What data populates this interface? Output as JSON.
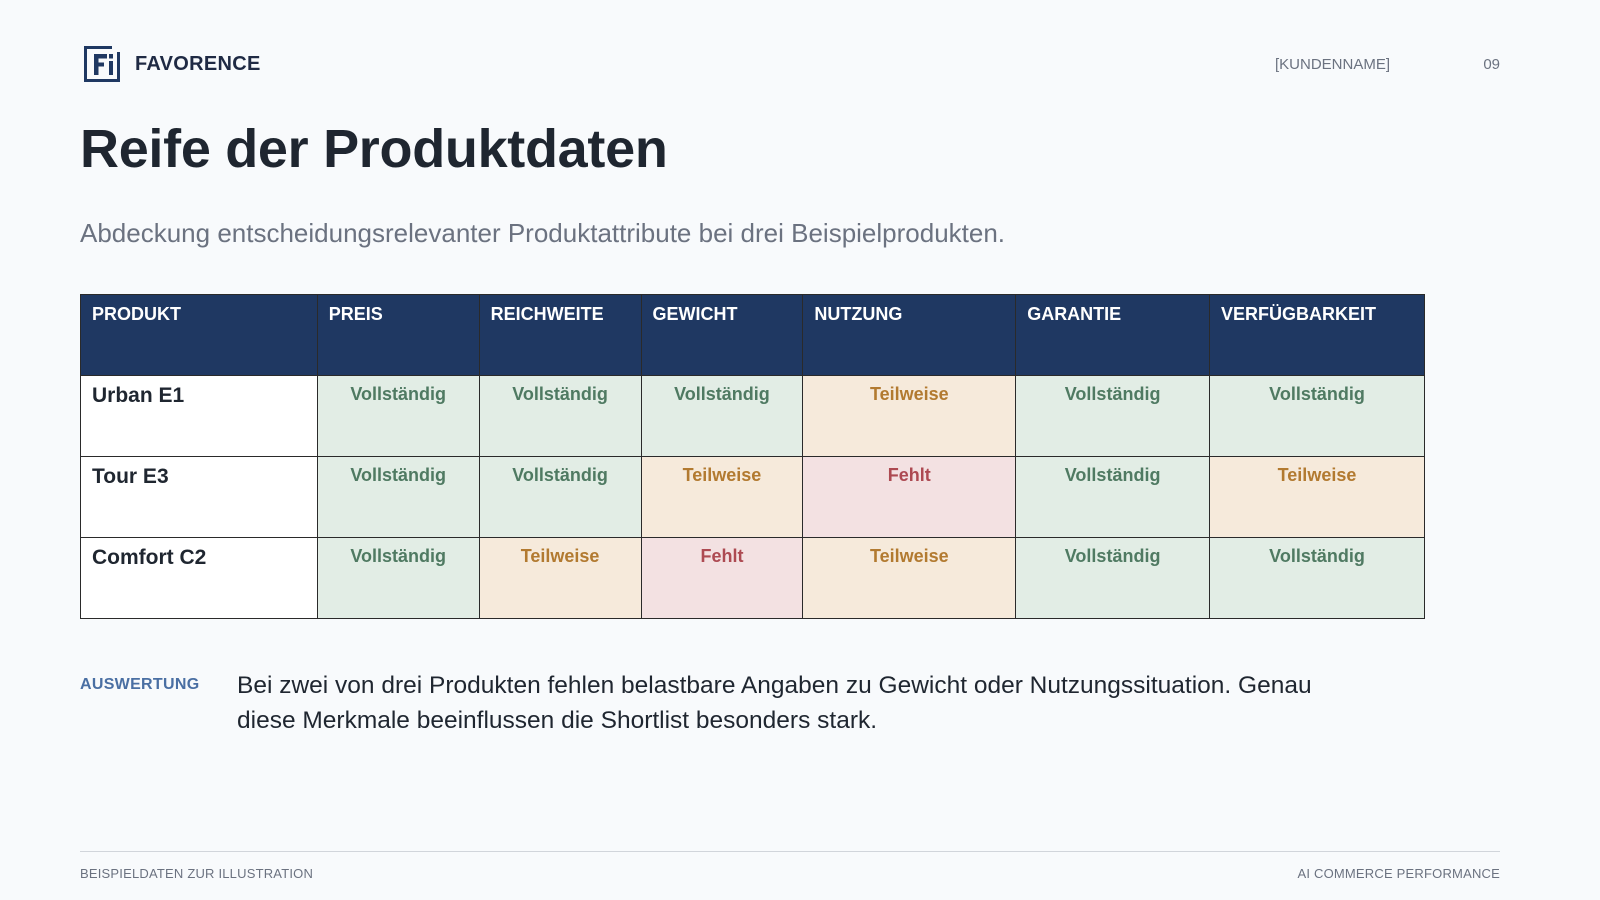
{
  "brand": {
    "name": "FAVORENCE",
    "logo_icon": "favorence-logo-icon"
  },
  "header": {
    "client": "[KUNDENNAME]",
    "page_number": "09"
  },
  "title": "Reife der Produktdaten",
  "subtitle": "Abdeckung entscheidungsrelevanter Produktattribute bei drei Beispielprodukten.",
  "table": {
    "headers": [
      "PRODUKT",
      "PREIS",
      "REICHWEITE",
      "GEWICHT",
      "NUTZUNG",
      "GARANTIE",
      "VERFÜGBARKEIT"
    ],
    "rows": [
      {
        "product": "Urban E1",
        "cells": [
          "Vollständig",
          "Vollständig",
          "Vollständig",
          "Teilweise",
          "Vollständig",
          "Vollständig"
        ]
      },
      {
        "product": "Tour E3",
        "cells": [
          "Vollständig",
          "Vollständig",
          "Teilweise",
          "Fehlt",
          "Vollständig",
          "Teilweise"
        ]
      },
      {
        "product": "Comfort C2",
        "cells": [
          "Vollständig",
          "Teilweise",
          "Fehlt",
          "Teilweise",
          "Vollständig",
          "Vollständig"
        ]
      }
    ],
    "status_colors": {
      "Vollständig": {
        "bg": "#e2ede5",
        "fg": "#4f7a62"
      },
      "Teilweise": {
        "bg": "#f6eadb",
        "fg": "#b27a30"
      },
      "Fehlt": {
        "bg": "#f3e1e2",
        "fg": "#ad4a52"
      }
    }
  },
  "evaluation": {
    "label": "AUSWERTUNG",
    "text": "Bei zwei von drei Produkten fehlen belastbare Angaben zu Gewicht oder Nutzungssituation. Genau diese Merkmale beeinflussen die Shortlist besonders stark."
  },
  "footer": {
    "left": "BEISPIELDATEN ZUR ILLUSTRATION",
    "right": "AI COMMERCE PERFORMANCE"
  },
  "colors": {
    "header_bg": "#1f3862",
    "accent": "#4a6fa3"
  }
}
